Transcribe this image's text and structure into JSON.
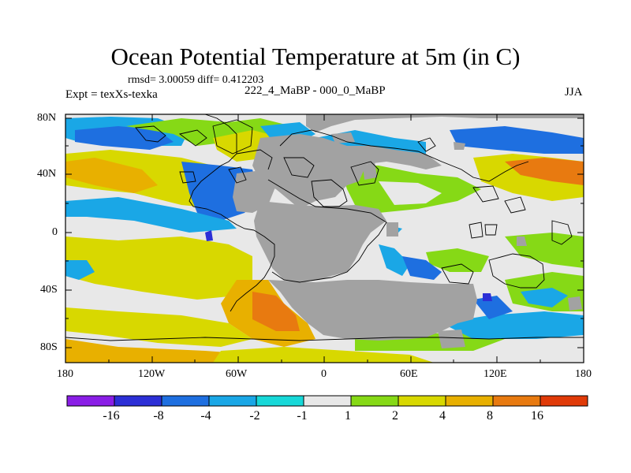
{
  "title": "Ocean Potential Temperature at 5m (in C)",
  "stats": "rmsd= 3.00059 diff= 0.412203",
  "experiment": "Expt = texXs-texka",
  "difference": "222_4_MaBP - 000_0_MaBP",
  "season": "JJA",
  "y_ticks": [
    "80N",
    "40N",
    "0",
    "40S",
    "80S"
  ],
  "x_ticks": [
    "180",
    "120W",
    "60W",
    "0",
    "60E",
    "120E",
    "180"
  ],
  "colorbar": {
    "labels": [
      "-16",
      "-8",
      "-4",
      "-2",
      "-1",
      "1",
      "2",
      "4",
      "8",
      "16"
    ],
    "colors": [
      "#8a1ee6",
      "#2c2fd6",
      "#1e6fe0",
      "#1aa7e6",
      "#17d8d8",
      "#e8e8e8",
      "#86d916",
      "#d8d800",
      "#e8b000",
      "#e87a10",
      "#e03a08"
    ]
  },
  "colors": {
    "land": "#a2a2a2",
    "neutral": "#e8e8e8"
  }
}
